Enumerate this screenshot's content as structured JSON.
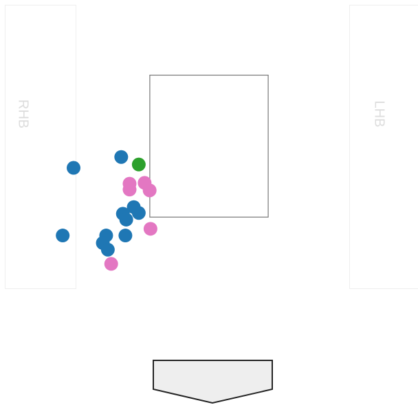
{
  "chart_data": {
    "type": "scatter",
    "xlim": [
      -2.5,
      2.5
    ],
    "ylim": [
      -0.5,
      4.35
    ],
    "strike_zone": {
      "x": [
        -0.708,
        0.708
      ],
      "y": [
        1.75,
        3.45
      ]
    },
    "batter_boxes": [
      "RHB",
      "LHB"
    ],
    "series": [
      {
        "color": "#1f77b4",
        "x": [
          -1.62,
          -1.05,
          -1.03,
          -0.99,
          -0.9,
          -0.84,
          -1.75,
          -1.23,
          -1.27,
          -1.21,
          -1.0
        ],
        "values": [
          2.34,
          2.47,
          1.79,
          1.72,
          1.87,
          1.8,
          1.53,
          1.53,
          1.44,
          1.36,
          1.53
        ]
      },
      {
        "color": "#e377c2",
        "x": [
          -0.95,
          -0.95,
          -0.77,
          -0.71,
          -0.7,
          -1.17
        ],
        "values": [
          2.15,
          2.08,
          2.16,
          2.07,
          1.61,
          1.19
        ]
      },
      {
        "color": "#2ca02c",
        "x": [
          -0.84
        ],
        "values": [
          2.38
        ]
      }
    ]
  }
}
